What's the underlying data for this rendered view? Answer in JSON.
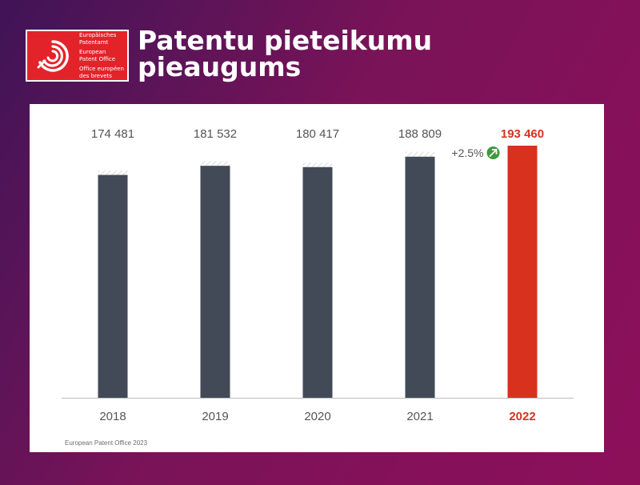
{
  "header": {
    "title": "Patentu pieteikumu pieaugums",
    "logo_lines": [
      "Europäisches",
      "Patentamt",
      "European",
      "Patent Office",
      "Office européen",
      "des brevets"
    ]
  },
  "colors": {
    "bar": "#424a57",
    "highlight": "#d8321f",
    "hatch": "#c9c9c9",
    "badge": "#3e9a3b",
    "logo_red": "#e3232a"
  },
  "chart_data": {
    "type": "bar",
    "categories": [
      "2018",
      "2019",
      "2020",
      "2021",
      "2022"
    ],
    "value_labels": [
      "174 481",
      "181 532",
      "180 417",
      "188 809",
      "193 460"
    ],
    "values": [
      174481,
      181532,
      180417,
      188809,
      193460
    ],
    "solid_values": [
      171000,
      178000,
      177000,
      185000,
      193460
    ],
    "highlight_category": "2022",
    "growth_annotation": "+2.5%",
    "ylim": [
      0,
      193460
    ],
    "source": "European Patent Office 2023"
  }
}
